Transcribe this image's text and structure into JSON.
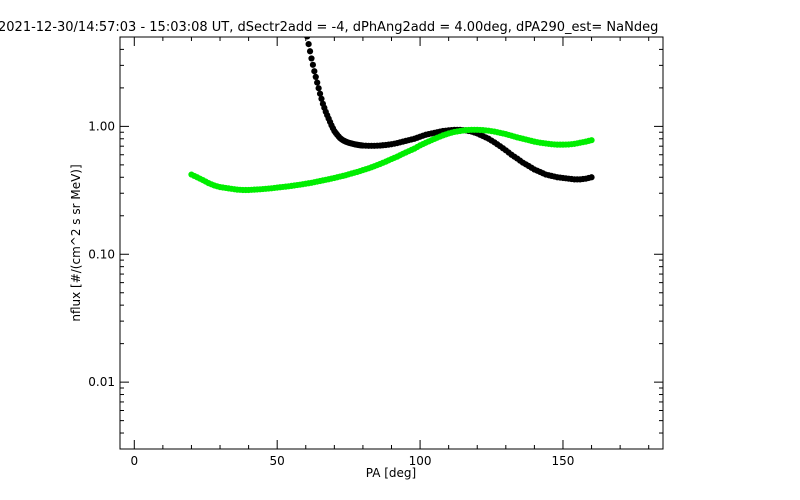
{
  "chart_data": {
    "type": "scatter",
    "title": "2021-12-30/14:57:03 - 15:03:08 UT, dSectr2add = -4, dPhAng2add = 4.00deg, dPA290_est=   NaNdeg",
    "xlabel": "PA [deg]",
    "ylabel": "nflux [#/(cm^2 s sr MeV)]",
    "xlim": [
      -5,
      185
    ],
    "ylim": [
      0.003,
      5
    ],
    "yscale": "log",
    "grid": false,
    "x_ticks": [
      0,
      50,
      100,
      150
    ],
    "x_tick_labels": [
      "0",
      "50",
      "100",
      "150"
    ],
    "y_ticks": [
      0.01,
      0.1,
      1.0
    ],
    "y_tick_labels": [
      "0.01",
      "0.10",
      "1.00"
    ],
    "series": [
      {
        "color": "#000000",
        "x": [
          60,
          61,
          62,
          63,
          64,
          65,
          66,
          67,
          68,
          69,
          70,
          71,
          72,
          73,
          74,
          75,
          76,
          77,
          78,
          79,
          80,
          82,
          84,
          86,
          88,
          90,
          92,
          94,
          96,
          98,
          100,
          102,
          104,
          106,
          108,
          110,
          112,
          114,
          116,
          118,
          120,
          122,
          124,
          126,
          128,
          130,
          132,
          134,
          136,
          138,
          140,
          142,
          144,
          146,
          148,
          150,
          152,
          154,
          156,
          158,
          160
        ],
        "y": [
          5.8,
          4.4,
          3.4,
          2.7,
          2.2,
          1.8,
          1.5,
          1.3,
          1.15,
          1.02,
          0.92,
          0.86,
          0.81,
          0.78,
          0.76,
          0.745,
          0.735,
          0.725,
          0.718,
          0.712,
          0.708,
          0.705,
          0.705,
          0.708,
          0.715,
          0.725,
          0.74,
          0.76,
          0.78,
          0.8,
          0.83,
          0.86,
          0.88,
          0.9,
          0.92,
          0.93,
          0.94,
          0.94,
          0.93,
          0.91,
          0.88,
          0.84,
          0.8,
          0.75,
          0.7,
          0.65,
          0.6,
          0.56,
          0.52,
          0.49,
          0.46,
          0.44,
          0.42,
          0.41,
          0.4,
          0.395,
          0.39,
          0.385,
          0.385,
          0.39,
          0.4
        ]
      },
      {
        "color": "#00ee00",
        "x": [
          20,
          22,
          24,
          26,
          28,
          30,
          32,
          34,
          36,
          38,
          40,
          42,
          44,
          46,
          48,
          50,
          52,
          54,
          56,
          58,
          60,
          62,
          64,
          66,
          68,
          70,
          72,
          74,
          76,
          78,
          80,
          82,
          84,
          86,
          88,
          90,
          92,
          94,
          96,
          98,
          100,
          102,
          104,
          106,
          108,
          110,
          112,
          114,
          116,
          118,
          120,
          122,
          124,
          126,
          128,
          130,
          132,
          134,
          136,
          138,
          140,
          142,
          144,
          146,
          148,
          150,
          152,
          154,
          156,
          158,
          160
        ],
        "y": [
          0.42,
          0.4,
          0.38,
          0.36,
          0.345,
          0.335,
          0.33,
          0.325,
          0.32,
          0.318,
          0.318,
          0.32,
          0.322,
          0.325,
          0.328,
          0.332,
          0.336,
          0.34,
          0.345,
          0.35,
          0.356,
          0.362,
          0.37,
          0.378,
          0.386,
          0.395,
          0.405,
          0.415,
          0.428,
          0.44,
          0.455,
          0.47,
          0.488,
          0.508,
          0.53,
          0.555,
          0.58,
          0.61,
          0.64,
          0.67,
          0.71,
          0.745,
          0.78,
          0.815,
          0.85,
          0.88,
          0.905,
          0.92,
          0.935,
          0.94,
          0.94,
          0.935,
          0.925,
          0.91,
          0.89,
          0.87,
          0.845,
          0.82,
          0.8,
          0.78,
          0.76,
          0.745,
          0.735,
          0.725,
          0.72,
          0.72,
          0.722,
          0.73,
          0.745,
          0.76,
          0.78
        ]
      }
    ]
  }
}
